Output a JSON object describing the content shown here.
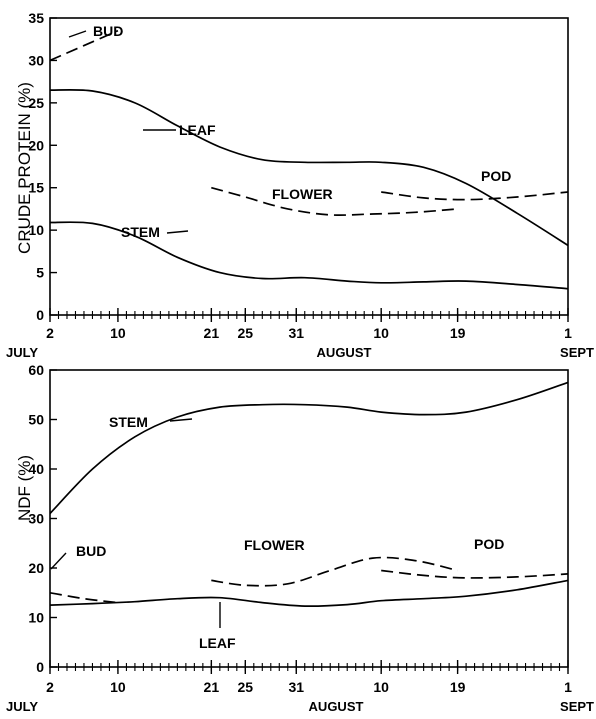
{
  "chart_data": [
    {
      "type": "line",
      "ylabel": "CRUDE PROTEIN (%)",
      "ylim": [
        0,
        35
      ],
      "yticks": [
        0,
        5,
        10,
        15,
        20,
        25,
        30,
        35
      ],
      "x_day_ticks": [
        "2",
        "10",
        "21",
        "25",
        "31",
        "10",
        "19",
        "1"
      ],
      "month_labels": [
        "JULY",
        "AUGUST",
        "SEPT"
      ],
      "series": [
        {
          "name": "BUD",
          "style": "dashed",
          "x": [
            "Jul 2",
            "Jul 10"
          ],
          "y": [
            30,
            33.5
          ]
        },
        {
          "name": "LEAF",
          "style": "solid",
          "x": [
            "Jul 2",
            "Jul 7",
            "Jul 12",
            "Jul 17",
            "Jul 22",
            "Jul 27",
            "Aug 1",
            "Aug 6",
            "Aug 10",
            "Aug 15",
            "Aug 20",
            "Aug 26",
            "Sep 1"
          ],
          "y": [
            26.5,
            26.4,
            25.0,
            22.3,
            19.8,
            18.3,
            18.0,
            18.0,
            18.0,
            17.4,
            15.5,
            12.0,
            8.2
          ]
        },
        {
          "name": "STEM",
          "style": "solid",
          "x": [
            "Jul 2",
            "Jul 7",
            "Jul 12",
            "Jul 17",
            "Jul 22",
            "Jul 27",
            "Aug 1",
            "Aug 6",
            "Aug 10",
            "Aug 15",
            "Aug 20",
            "Aug 26",
            "Sep 1"
          ],
          "y": [
            10.9,
            10.8,
            9.3,
            6.8,
            5.0,
            4.3,
            4.4,
            4.0,
            3.8,
            3.9,
            4.0,
            3.6,
            3.1
          ]
        },
        {
          "name": "FLOWER",
          "style": "dashed",
          "x": [
            "Jul 21",
            "Jul 25",
            "Jul 30",
            "Aug 4",
            "Aug 9",
            "Aug 14",
            "Aug 19"
          ],
          "y": [
            15.0,
            13.9,
            12.5,
            11.8,
            11.9,
            12.1,
            12.5
          ]
        },
        {
          "name": "POD",
          "style": "dashed",
          "x": [
            "Aug 10",
            "Aug 15",
            "Aug 20",
            "Aug 26",
            "Sep 1"
          ],
          "y": [
            14.5,
            13.8,
            13.6,
            13.9,
            14.5
          ]
        }
      ]
    },
    {
      "type": "line",
      "ylabel": "NDF (%)",
      "ylim": [
        0,
        60
      ],
      "yticks": [
        0,
        10,
        20,
        30,
        40,
        50,
        60
      ],
      "x_day_ticks": [
        "2",
        "10",
        "21",
        "25",
        "31",
        "10",
        "19",
        "1"
      ],
      "month_labels": [
        "JULY",
        "AUGUST",
        "SEPT"
      ],
      "series": [
        {
          "name": "STEM",
          "style": "solid",
          "x": [
            "Jul 2",
            "Jul 7",
            "Jul 12",
            "Jul 17",
            "Jul 22",
            "Jul 27",
            "Aug 1",
            "Aug 6",
            "Aug 10",
            "Aug 15",
            "Aug 20",
            "Aug 26",
            "Sep 1"
          ],
          "y": [
            31,
            40,
            46.5,
            50.5,
            52.5,
            53.0,
            53.0,
            52.5,
            51.5,
            51.0,
            51.5,
            54.0,
            57.5
          ]
        },
        {
          "name": "BUD",
          "style": "dashed",
          "x": [
            "Jul 2",
            "Jul 6",
            "Jul 10"
          ],
          "y": [
            15,
            13.8,
            13
          ]
        },
        {
          "name": "LEAF",
          "style": "solid",
          "x": [
            "Jul 2",
            "Jul 7",
            "Jul 12",
            "Jul 17",
            "Jul 22",
            "Jul 27",
            "Aug 1",
            "Aug 6",
            "Aug 10",
            "Aug 15",
            "Aug 20",
            "Aug 26",
            "Sep 1"
          ],
          "y": [
            12.5,
            12.8,
            13.2,
            13.8,
            14.0,
            13.0,
            12.3,
            12.6,
            13.4,
            13.8,
            14.3,
            15.6,
            17.5
          ]
        },
        {
          "name": "FLOWER",
          "style": "dashed",
          "x": [
            "Jul 21",
            "Jul 25",
            "Jul 30",
            "Aug 4",
            "Aug 9",
            "Aug 14",
            "Aug 19"
          ],
          "y": [
            17.5,
            16.5,
            16.8,
            19.5,
            22.0,
            21.5,
            19.5
          ]
        },
        {
          "name": "POD",
          "style": "dashed",
          "x": [
            "Aug 10",
            "Aug 15",
            "Aug 20",
            "Aug 26",
            "Sep 1"
          ],
          "y": [
            19.5,
            18.5,
            18.0,
            18.2,
            18.8
          ]
        }
      ]
    }
  ]
}
